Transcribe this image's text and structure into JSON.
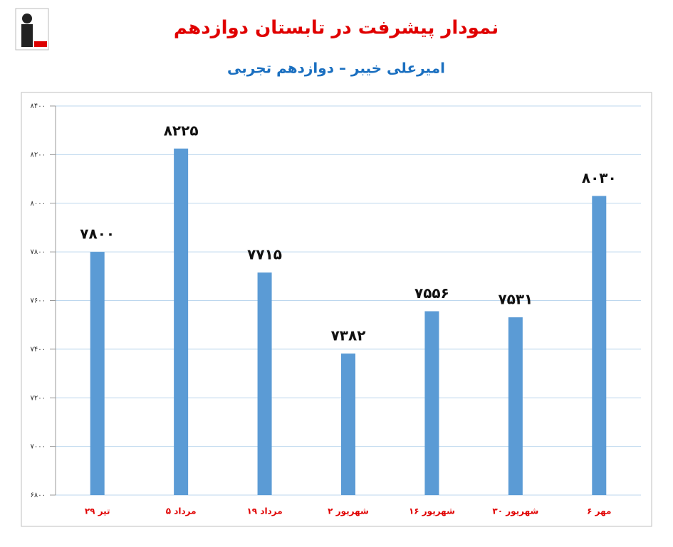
{
  "chart_data": {
    "type": "bar",
    "title": "نمودار پیشرفت در تابستان دوازدهم",
    "subtitle": "امیرعلی خیبر – دوازدهم تجربی",
    "categories": [
      "۲۹ تیر",
      "۵ مرداد",
      "۱۹ مرداد",
      "۲ شهریور",
      "۱۶ شهریور",
      "۳۰ شهریور",
      "۶ مهر"
    ],
    "values": [
      7800,
      8225,
      7715,
      7382,
      7556,
      7531,
      8030
    ],
    "value_labels": [
      "۷۸۰۰",
      "۸۲۲۵",
      "۷۷۱۵",
      "۷۳۸۲",
      "۷۵۵۶",
      "۷۵۳۱",
      "۸۰۳۰"
    ],
    "color": "#5b9bd5",
    "ylim": [
      6800,
      8400
    ],
    "yticks": [
      {
        "value": 6800,
        "label": "۶۸۰۰"
      },
      {
        "value": 7000,
        "label": "۷۰۰۰"
      },
      {
        "value": 7200,
        "label": "۷۲۰۰"
      },
      {
        "value": 7400,
        "label": "۷۴۰۰"
      },
      {
        "value": 7600,
        "label": "۷۶۰۰"
      },
      {
        "value": 7800,
        "label": "۷۸۰۰"
      },
      {
        "value": 8000,
        "label": "۸۰۰۰"
      },
      {
        "value": 8200,
        "label": "۸۲۰۰"
      },
      {
        "value": 8400,
        "label": "۸۴۰۰"
      }
    ],
    "grid": true
  }
}
